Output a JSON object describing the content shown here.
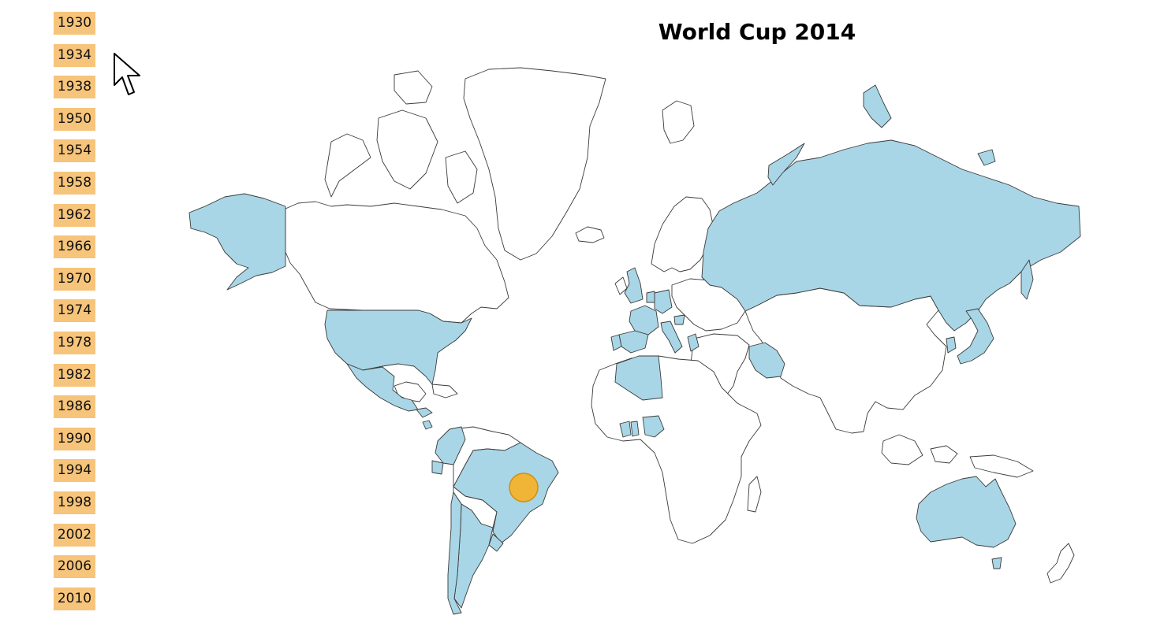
{
  "title": "World Cup 2014",
  "selected_year": "2014",
  "years": [
    "1930",
    "1934",
    "1938",
    "1950",
    "1954",
    "1958",
    "1962",
    "1966",
    "1970",
    "1974",
    "1978",
    "1982",
    "1986",
    "1990",
    "1994",
    "1998",
    "2002",
    "2006",
    "2010"
  ],
  "colors": {
    "year_button_bg": "#f6c47a",
    "participant_fill": "#a9d6e6",
    "land_fill": "#ffffff",
    "border": "#3a3a3a",
    "host_marker": "#f0b436"
  },
  "host_marker": {
    "country": "Brazil"
  },
  "highlighted_countries": [
    "Alaska (USA)",
    "USA",
    "Mexico",
    "Honduras",
    "Costa Rica",
    "Colombia",
    "Ecuador",
    "Brazil",
    "Chile",
    "Argentina",
    "Uruguay",
    "England",
    "France",
    "Spain",
    "Portugal",
    "Netherlands",
    "Belgium",
    "Germany",
    "Switzerland",
    "Italy",
    "Croatia",
    "Bosnia and Herzegovina",
    "Greece",
    "Russia",
    "Iran",
    "Algeria",
    "Ghana",
    "Ivory Coast",
    "Nigeria",
    "Cameroon",
    "South Korea",
    "Japan",
    "Australia"
  ],
  "cursor_icon": "arrow-pointer-icon"
}
